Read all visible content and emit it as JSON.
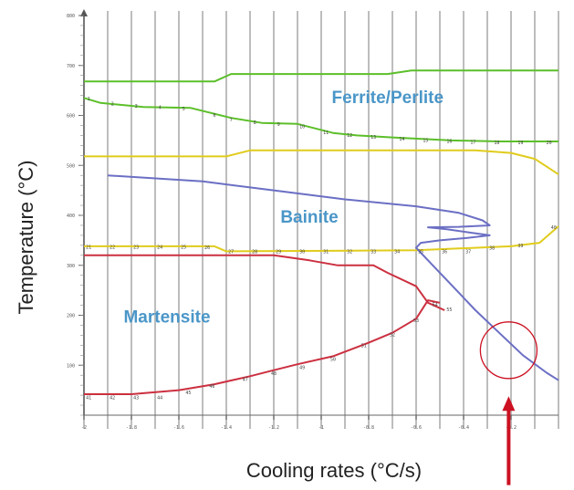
{
  "chart_data": {
    "type": "line",
    "xlabel": "Cooling rates (°C/s)",
    "ylabel": "Temperature (°C)",
    "xlim": [
      -2.0,
      0.0
    ],
    "ylim": [
      0,
      800
    ],
    "x_ticks": [
      -2,
      -1.8,
      -1.6,
      -1.4,
      -1.2,
      -1,
      -0.8,
      -0.6,
      -0.4,
      -0.2
    ],
    "x_tick_labels": [
      "-2",
      "-1.8",
      "-1.6",
      "-1.4",
      "-1.2",
      "-1",
      "-0.8",
      "-0.6",
      "-0.4",
      "-0.2"
    ],
    "y_ticks": [
      100,
      200,
      300,
      400,
      500,
      600,
      700,
      800
    ],
    "y_tick_labels": [
      "100",
      "200",
      "300",
      "400",
      "500",
      "600",
      "700",
      "800"
    ],
    "grid": "vertical",
    "region_labels": [
      {
        "text": "Ferrite/Perlite",
        "x": -0.72,
        "y": 625,
        "color": "#4a96c8"
      },
      {
        "text": "Bainite",
        "x": -1.05,
        "y": 385,
        "color": "#4a96c8"
      },
      {
        "text": "Martensite",
        "x": -1.65,
        "y": 185,
        "color": "#4a96c8"
      }
    ],
    "series": [
      {
        "color": "#5cbf2a",
        "values": [
          [
            -2.0,
            668
          ],
          [
            -1.45,
            668
          ],
          [
            -1.38,
            683
          ],
          [
            -0.72,
            683
          ],
          [
            -0.62,
            690
          ],
          [
            0.0,
            690
          ]
        ]
      },
      {
        "color": "#5cbf2a",
        "values": [
          [
            -2.0,
            635
          ],
          [
            -1.93,
            625
          ],
          [
            -1.75,
            617
          ],
          [
            -1.55,
            615
          ],
          [
            -1.38,
            595
          ],
          [
            -1.25,
            585
          ],
          [
            -1.1,
            583
          ],
          [
            -0.95,
            565
          ],
          [
            -0.85,
            560
          ],
          [
            -0.7,
            556
          ],
          [
            -0.45,
            550
          ],
          [
            -0.25,
            548
          ],
          [
            0.0,
            548
          ]
        ]
      },
      {
        "color": "#e0cc1c",
        "values": [
          [
            -2.0,
            518
          ],
          [
            -1.4,
            518
          ],
          [
            -1.3,
            530
          ],
          [
            -0.35,
            530
          ],
          [
            -0.2,
            525
          ],
          [
            -0.1,
            513
          ],
          [
            0.0,
            482
          ]
        ]
      },
      {
        "color": "#e0cc1c",
        "values": [
          [
            -2.0,
            338
          ],
          [
            -1.45,
            338
          ],
          [
            -1.4,
            328
          ],
          [
            -0.6,
            330
          ],
          [
            -0.2,
            338
          ],
          [
            -0.08,
            345
          ],
          [
            0.0,
            378
          ]
        ]
      },
      {
        "color": "#6b6fc4",
        "values": [
          [
            -1.9,
            480
          ],
          [
            -1.5,
            468
          ],
          [
            -1.2,
            450
          ],
          [
            -0.9,
            432
          ],
          [
            -0.6,
            418
          ],
          [
            -0.42,
            405
          ],
          [
            -0.32,
            390
          ],
          [
            -0.29,
            380
          ],
          [
            -0.42,
            377
          ],
          [
            -0.55,
            376
          ],
          [
            -0.47,
            372
          ],
          [
            -0.38,
            366
          ],
          [
            -0.29,
            360
          ],
          [
            -0.38,
            355
          ],
          [
            -0.5,
            350
          ],
          [
            -0.58,
            345
          ],
          [
            -0.6,
            335
          ],
          [
            -0.55,
            310
          ],
          [
            -0.45,
            260
          ],
          [
            -0.35,
            210
          ],
          [
            -0.25,
            165
          ],
          [
            -0.15,
            120
          ],
          [
            -0.05,
            85
          ],
          [
            0.0,
            70
          ]
        ]
      },
      {
        "color": "#cc3040",
        "values": [
          [
            -2.0,
            320
          ],
          [
            -1.2,
            320
          ],
          [
            -1.05,
            310
          ],
          [
            -0.93,
            300
          ],
          [
            -0.78,
            300
          ],
          [
            -0.72,
            285
          ],
          [
            -0.6,
            258
          ],
          [
            -0.55,
            225
          ],
          [
            -0.48,
            210
          ]
        ]
      },
      {
        "color": "#cc3040",
        "values": [
          [
            -2.0,
            42
          ],
          [
            -1.8,
            42
          ],
          [
            -1.6,
            50
          ],
          [
            -1.45,
            62
          ],
          [
            -1.3,
            78
          ],
          [
            -1.2,
            90
          ],
          [
            -1.1,
            102
          ],
          [
            -0.95,
            118
          ],
          [
            -0.8,
            145
          ],
          [
            -0.7,
            165
          ],
          [
            -0.6,
            193
          ],
          [
            -0.55,
            230
          ],
          [
            -0.5,
            225
          ]
        ]
      }
    ],
    "point_labels": [
      {
        "text": "1",
        "x": -1.98,
        "y": 634
      },
      {
        "text": "2",
        "x": -1.88,
        "y": 624
      },
      {
        "text": "3",
        "x": -1.78,
        "y": 619
      },
      {
        "text": "4",
        "x": -1.68,
        "y": 616
      },
      {
        "text": "5",
        "x": -1.58,
        "y": 614
      },
      {
        "text": "6",
        "x": -1.45,
        "y": 601
      },
      {
        "text": "7",
        "x": -1.38,
        "y": 592
      },
      {
        "text": "8",
        "x": -1.28,
        "y": 586
      },
      {
        "text": "9",
        "x": -1.18,
        "y": 583
      },
      {
        "text": "10",
        "x": -1.08,
        "y": 578
      },
      {
        "text": "11",
        "x": -0.98,
        "y": 566
      },
      {
        "text": "12",
        "x": -0.88,
        "y": 561
      },
      {
        "text": "13",
        "x": -0.78,
        "y": 557
      },
      {
        "text": "14",
        "x": -0.66,
        "y": 553
      },
      {
        "text": "15",
        "x": -0.56,
        "y": 551
      },
      {
        "text": "16",
        "x": -0.46,
        "y": 549
      },
      {
        "text": "17",
        "x": -0.36,
        "y": 547
      },
      {
        "text": "18",
        "x": -0.26,
        "y": 546
      },
      {
        "text": "19",
        "x": -0.16,
        "y": 546
      },
      {
        "text": "20",
        "x": -0.04,
        "y": 546
      },
      {
        "text": "21",
        "x": -1.98,
        "y": 337
      },
      {
        "text": "22",
        "x": -1.88,
        "y": 337
      },
      {
        "text": "23",
        "x": -1.78,
        "y": 337
      },
      {
        "text": "24",
        "x": -1.68,
        "y": 337
      },
      {
        "text": "25",
        "x": -1.58,
        "y": 337
      },
      {
        "text": "26",
        "x": -1.48,
        "y": 336
      },
      {
        "text": "27",
        "x": -1.38,
        "y": 328
      },
      {
        "text": "28",
        "x": -1.28,
        "y": 328
      },
      {
        "text": "29",
        "x": -1.18,
        "y": 328
      },
      {
        "text": "30",
        "x": -1.08,
        "y": 328
      },
      {
        "text": "31",
        "x": -0.98,
        "y": 328
      },
      {
        "text": "32",
        "x": -0.88,
        "y": 328
      },
      {
        "text": "33",
        "x": -0.78,
        "y": 328
      },
      {
        "text": "34",
        "x": -0.68,
        "y": 328
      },
      {
        "text": "35",
        "x": -0.58,
        "y": 328
      },
      {
        "text": "36",
        "x": -0.48,
        "y": 328
      },
      {
        "text": "37",
        "x": -0.38,
        "y": 328
      },
      {
        "text": "38",
        "x": -0.28,
        "y": 335
      },
      {
        "text": "39",
        "x": -0.16,
        "y": 340
      },
      {
        "text": "40",
        "x": -0.02,
        "y": 376
      },
      {
        "text": "41",
        "x": -1.98,
        "y": 36
      },
      {
        "text": "42",
        "x": -1.88,
        "y": 36
      },
      {
        "text": "43",
        "x": -1.78,
        "y": 36
      },
      {
        "text": "44",
        "x": -1.68,
        "y": 36
      },
      {
        "text": "45",
        "x": -1.56,
        "y": 46
      },
      {
        "text": "46",
        "x": -1.46,
        "y": 58
      },
      {
        "text": "47",
        "x": -1.32,
        "y": 72
      },
      {
        "text": "48",
        "x": -1.2,
        "y": 84
      },
      {
        "text": "49",
        "x": -1.08,
        "y": 96
      },
      {
        "text": "50",
        "x": -0.95,
        "y": 112
      },
      {
        "text": "51",
        "x": -0.82,
        "y": 140
      },
      {
        "text": "52",
        "x": -0.7,
        "y": 162
      },
      {
        "text": "53",
        "x": -0.6,
        "y": 190
      },
      {
        "text": "54",
        "x": -0.52,
        "y": 222
      },
      {
        "text": "55",
        "x": -0.46,
        "y": 212
      }
    ],
    "annotations": [
      {
        "type": "circle",
        "x": -0.21,
        "y": 130,
        "color": "#cc1122"
      },
      {
        "type": "arrow",
        "x": -0.21,
        "from_y": -140,
        "to_y": 38,
        "color": "#cc1122"
      }
    ]
  }
}
